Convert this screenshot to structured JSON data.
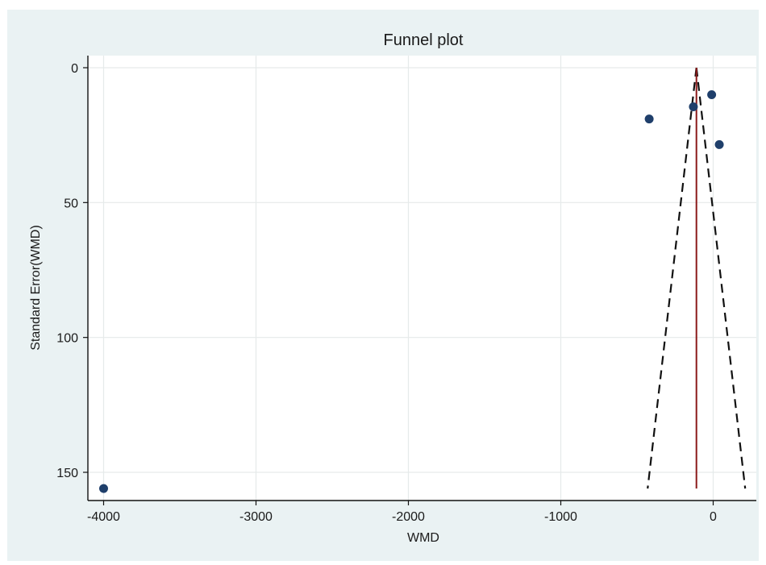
{
  "chart_data": {
    "type": "scatter",
    "title": "Funnel plot",
    "xlabel": "WMD",
    "ylabel": "Standard Error(WMD)",
    "xlim": [
      -4150,
      250
    ],
    "ylim": [
      0,
      160
    ],
    "y_reversed": true,
    "grid": true,
    "x_ticks": [
      -4000,
      -3000,
      -2000,
      -1000,
      0
    ],
    "x_tick_labels": [
      "-4000",
      "-3000",
      "-2000",
      "-1000",
      "0"
    ],
    "y_ticks": [
      0,
      50,
      100,
      150
    ],
    "y_tick_labels": [
      "0",
      "50",
      "100",
      "150"
    ],
    "points": [
      {
        "x": -4000,
        "y": 156
      },
      {
        "x": -420,
        "y": 19
      },
      {
        "x": -130,
        "y": 14.5
      },
      {
        "x": -10,
        "y": 10
      },
      {
        "x": 40,
        "y": 28.5
      }
    ],
    "pooled_estimate": {
      "x": -110,
      "y_range": [
        0,
        156
      ]
    },
    "pseudo_ci_lines": [
      {
        "from": {
          "x": -110,
          "y": 0
        },
        "to": {
          "x": -430,
          "y": 156
        }
      },
      {
        "from": {
          "x": -110,
          "y": 0
        },
        "to": {
          "x": 210,
          "y": 156
        }
      }
    ],
    "colors": {
      "background": "#eaf2f3",
      "plot_area": "#ffffff",
      "points": "#1f3f6b",
      "pooled_line": "#8b1a1a",
      "ci_lines": "#111111",
      "grid": "#e6eaea"
    }
  }
}
